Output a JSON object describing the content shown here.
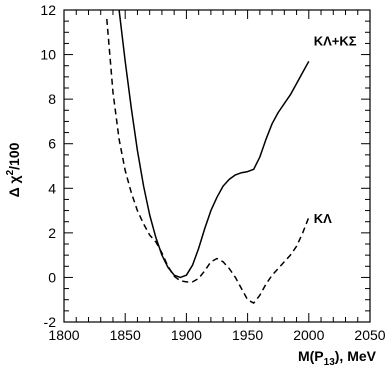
{
  "chart_data": {
    "type": "line",
    "xlabel": {
      "main": "M(P",
      "sub": "13",
      "rest": "), MeV"
    },
    "ylabel": {
      "pre": "Δ χ",
      "sup": "2",
      "post": "/100"
    },
    "xlim": [
      1800,
      2050
    ],
    "ylim": [
      -2,
      12
    ],
    "xticks": [
      1800,
      1850,
      1900,
      1950,
      2000,
      2050
    ],
    "yticks": [
      -2,
      0,
      2,
      4,
      6,
      8,
      10,
      12
    ],
    "grid": false,
    "series": [
      {
        "name": "KΛ+KΣ",
        "style": "solid",
        "x": [
          1845,
          1850,
          1855,
          1860,
          1865,
          1870,
          1875,
          1880,
          1885,
          1890,
          1895,
          1900,
          1905,
          1910,
          1915,
          1920,
          1925,
          1930,
          1935,
          1940,
          1945,
          1950,
          1955,
          1960,
          1965,
          1970,
          1975,
          1980,
          1985,
          1990,
          1995,
          2000
        ],
        "y": [
          12.0,
          9.7,
          7.6,
          5.7,
          4.1,
          2.8,
          1.8,
          1.0,
          0.45,
          0.1,
          0.0,
          0.1,
          0.55,
          1.3,
          2.2,
          3.0,
          3.6,
          4.1,
          4.4,
          4.6,
          4.7,
          4.75,
          4.85,
          5.4,
          6.2,
          6.9,
          7.4,
          7.8,
          8.2,
          8.7,
          9.2,
          9.7
        ]
      },
      {
        "name": "KΛ",
        "style": "dashed",
        "x": [
          1835,
          1840,
          1845,
          1850,
          1855,
          1860,
          1865,
          1870,
          1875,
          1880,
          1885,
          1890,
          1895,
          1900,
          1905,
          1910,
          1915,
          1920,
          1925,
          1930,
          1935,
          1940,
          1945,
          1950,
          1955,
          1960,
          1965,
          1970,
          1975,
          1980,
          1985,
          1990,
          1995,
          2000
        ],
        "y": [
          11.6,
          8.3,
          6.2,
          4.8,
          3.8,
          3.0,
          2.4,
          1.9,
          1.6,
          1.1,
          0.5,
          0.05,
          -0.15,
          -0.2,
          -0.2,
          -0.05,
          0.3,
          0.7,
          0.85,
          0.7,
          0.4,
          0.0,
          -0.5,
          -1.0,
          -1.15,
          -0.8,
          -0.3,
          0.1,
          0.4,
          0.7,
          1.0,
          1.4,
          2.0,
          2.7
        ]
      }
    ],
    "annotations": [
      {
        "text": "KΛ+KΣ",
        "x": 2004,
        "y": 10.4
      },
      {
        "text": "KΛ",
        "x": 2004,
        "y": 2.45
      }
    ]
  }
}
